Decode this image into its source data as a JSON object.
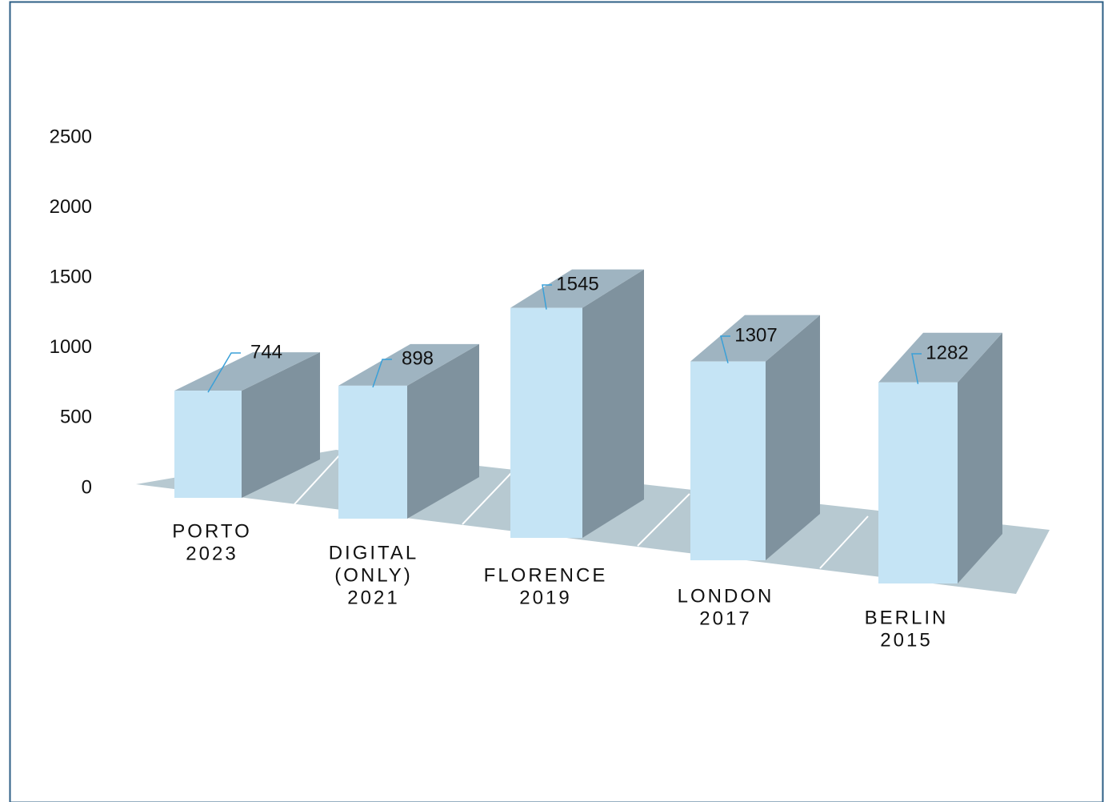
{
  "chart_data": {
    "type": "bar3d",
    "categories": [
      [
        "PORTO",
        "2023"
      ],
      [
        "DIGITAL",
        "(ONLY)",
        "2021"
      ],
      [
        "FLORENCE",
        "2019"
      ],
      [
        "LONDON",
        "2017"
      ],
      [
        "BERLIN",
        "2015"
      ]
    ],
    "values": [
      744,
      898,
      1545,
      1307,
      1282
    ],
    "color": "#c5e4f5",
    "ylim": [
      0,
      2500
    ],
    "yticks": [
      0,
      500,
      1000,
      1500,
      2000,
      2500
    ],
    "grid": false
  }
}
